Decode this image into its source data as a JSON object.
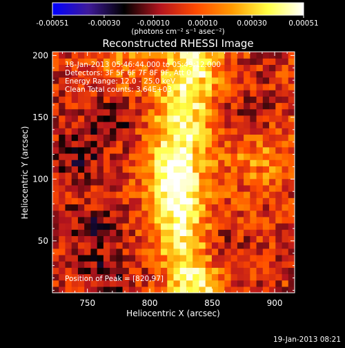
{
  "chart_data": {
    "type": "heatmap",
    "title": "Reconstructed RHESSI Image",
    "xlabel": "Heliocentric X (arcsec)",
    "ylabel": "Heliocentric Y (arcsec)",
    "xlim": [
      722,
      916
    ],
    "ylim": [
      8,
      203
    ],
    "xticks": [
      750,
      800,
      850,
      900
    ],
    "yticks": [
      50,
      100,
      150,
      200
    ],
    "colorbar": {
      "min": -0.00051,
      "max": 0.00051,
      "ticks": [
        "-0.00051",
        "-0.00030",
        "-0.00010",
        "0.00010",
        "0.00030",
        "0.00051"
      ],
      "tick_values": [
        -0.00051,
        -0.0003,
        -0.0001,
        0.0001,
        0.0003,
        0.00051
      ],
      "unit_label": "(photons cm⁻² s⁻¹ asec⁻²)",
      "colormap": [
        "#0000ff",
        "#3f1a9a",
        "#000000",
        "#b4141e",
        "#ff4a00",
        "#ff9a00",
        "#ffff44",
        "#ffffff"
      ]
    },
    "annotations": [
      "18-Jan-2013 05:46:44.000 to 05:49:12.000",
      "Detectors: 3F 5F 6F 7F 8F 9F, Att 0",
      "Energy Range: 12.0 - 25.0 keV",
      "Clean     Total counts: 3.64E+03"
    ],
    "peak_label": "Position of Peak = [820,97]",
    "peak_position": [
      820,
      97
    ],
    "source": {
      "ridge": [
        [
          836,
          203
        ],
        [
          828,
          165
        ],
        [
          822,
          130
        ],
        [
          820,
          97
        ],
        [
          826,
          60
        ],
        [
          836,
          20
        ]
      ],
      "peak_value": 0.00051,
      "negative_regions": [
        [
          742,
          118
        ],
        [
          770,
          150
        ],
        [
          880,
          148
        ],
        [
          752,
          60
        ],
        [
          848,
          42
        ],
        [
          765,
          22
        ]
      ]
    }
  },
  "footer_timestamp": "19-Jan-2013 08:21"
}
